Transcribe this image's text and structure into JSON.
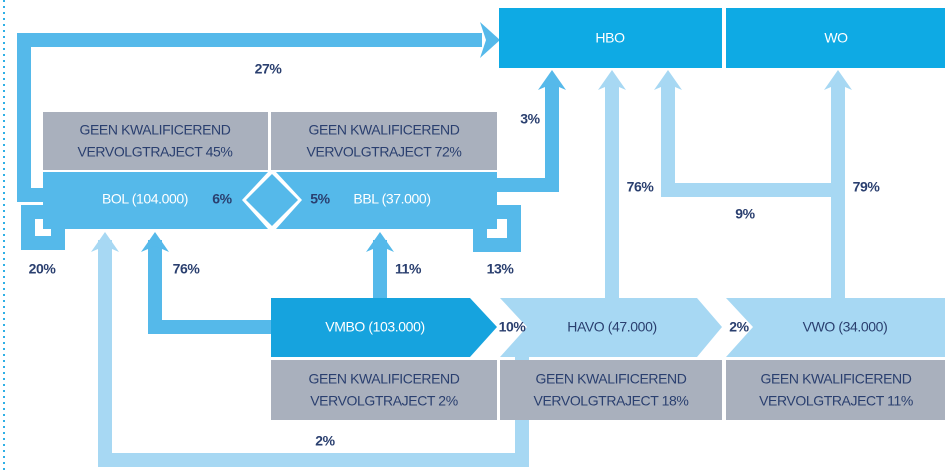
{
  "nodes": {
    "hbo": "HBO",
    "wo": "WO",
    "bol": "BOL (104.000)",
    "bbl": "BBL (37.000)",
    "vmbo": "VMBO (103.000)",
    "havo": "HAVO (47.000)",
    "vwo": "VWO (34.000)"
  },
  "exits": [
    [
      "GEEN KWALIFICEREND",
      "VERVOLGTRAJECT 45%"
    ],
    [
      "GEEN KWALIFICEREND",
      "VERVOLGTRAJECT 72%"
    ],
    [
      "GEEN KWALIFICEREND",
      "VERVOLGTRAJECT 2%"
    ],
    [
      "GEEN KWALIFICEREND",
      "VERVOLGTRAJECT 18%"
    ],
    [
      "GEEN KWALIFICEREND",
      "VERVOLGTRAJECT 11%"
    ]
  ],
  "flows": [
    "27%",
    "3%",
    "6%",
    "5%",
    "20%",
    "76%",
    "11%",
    "13%",
    "76%",
    "9%",
    "79%",
    "10%",
    "2%",
    "2%"
  ]
}
